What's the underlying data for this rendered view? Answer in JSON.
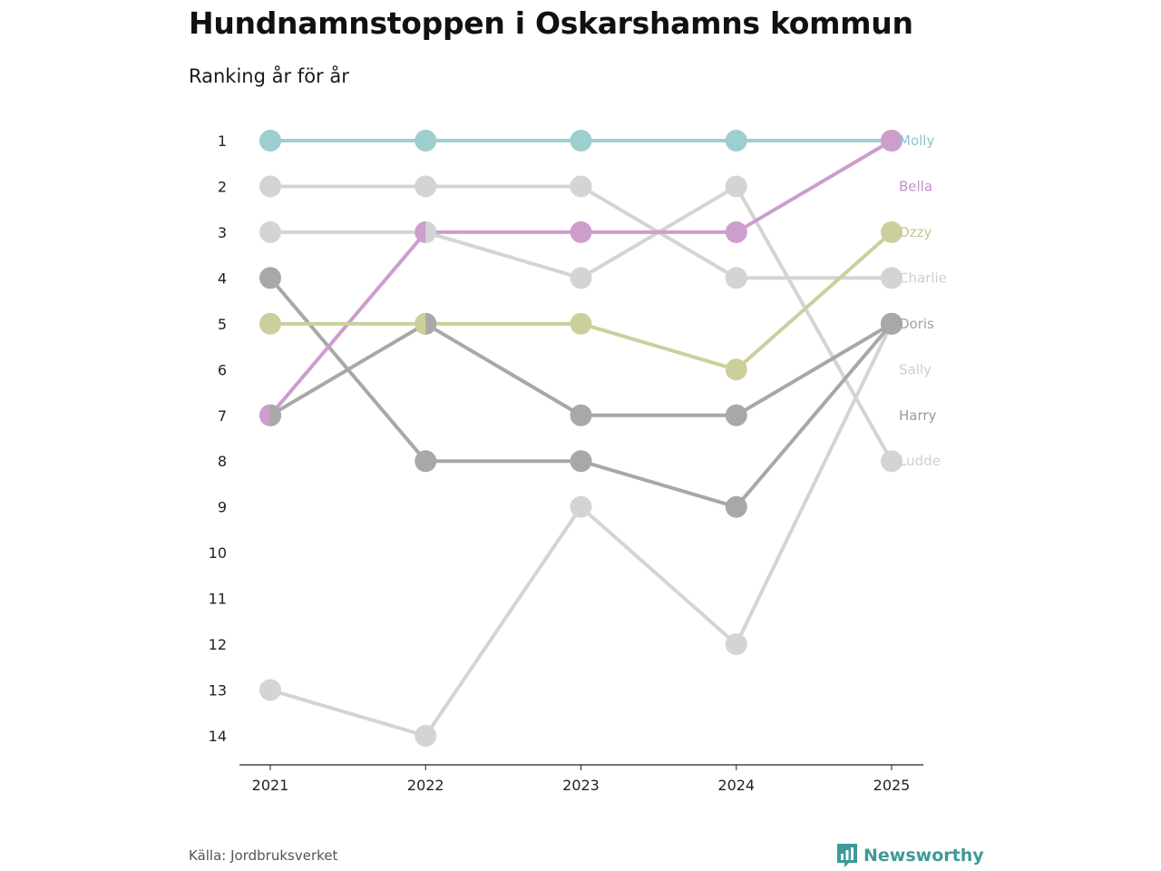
{
  "title": "Hundnamnstoppen i Oskarshamns kommun",
  "subtitle": "Ranking år för år",
  "source": "Källa: Jordbruksverket",
  "brand": "Newsworthy",
  "chart_data": {
    "type": "line",
    "subtype": "bump",
    "x": [
      "2021",
      "2022",
      "2023",
      "2024",
      "2025"
    ],
    "y_ticks": [
      "1",
      "2",
      "3",
      "4",
      "5",
      "6",
      "7",
      "8",
      "9",
      "10",
      "11",
      "12",
      "13",
      "14"
    ],
    "ylim": [
      1,
      14
    ],
    "y_reversed": true,
    "legend": "end-labels-right",
    "colors": {
      "teal": "#9ccfcd",
      "purple": "#cd9dcc",
      "olive": "#cccf9c",
      "lightgray": "#d4d4d4",
      "midgray": "#a8a8a8",
      "darkgray": "#6b6b73"
    },
    "series": [
      {
        "name": "Molly",
        "values": [
          1,
          1,
          1,
          1,
          1
        ],
        "color": "#9ccfcd",
        "label_color": "#8cc4cc",
        "last_half_color": "#cd9dcc"
      },
      {
        "name": "Bella",
        "values": [
          7,
          3,
          3,
          3,
          1
        ],
        "color": "#cd9dcc",
        "label_color": "#c48ec4",
        "half_colors": [
          "#a8a8a8",
          "#d4d4d4",
          null,
          null,
          null
        ]
      },
      {
        "name": "Ozzy",
        "values": [
          5,
          5,
          5,
          6,
          3
        ],
        "color": "#cccf9c",
        "label_color": "#c4c690",
        "half_colors": [
          null,
          "#a8a8a8",
          null,
          null,
          null
        ]
      },
      {
        "name": "Charlie",
        "values": [
          3,
          3,
          4,
          2,
          8
        ],
        "color": "#d4d4d4",
        "label_color": "#cfcfcf"
      },
      {
        "name": "Doris",
        "values": [
          13,
          14,
          9,
          12,
          5
        ],
        "color": "#d4d4d4",
        "label_color": "#a2a2a2",
        "last_point_color": "#6b6b73"
      },
      {
        "name": "Sally",
        "values": [
          2,
          2,
          2,
          4,
          4
        ],
        "color": "#d4d4d4",
        "label_color": "#cfcfcf"
      },
      {
        "name": "Harry",
        "values": [
          7,
          5,
          7,
          7,
          5
        ],
        "color": "#a8a8a8",
        "label_color": "#9a9a9a"
      },
      {
        "name": "Ludde",
        "values": [
          4,
          8,
          8,
          9,
          5
        ],
        "color": "#a8a8a8",
        "label_color": "#cfcfcf"
      }
    ]
  }
}
